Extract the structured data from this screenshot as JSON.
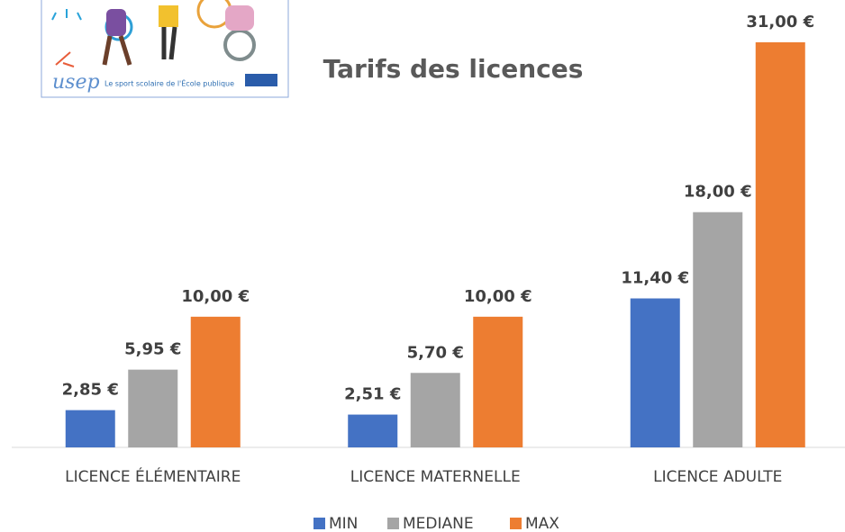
{
  "logo": {
    "brand": "usep",
    "tagline": "Le sport scolaire de l'École publique"
  },
  "chart_data": {
    "type": "bar",
    "title": "Tarifs des licences",
    "categories": [
      "LICENCE ÉLÉMENTAIRE",
      "LICENCE MATERNELLE",
      "LICENCE ADULTE"
    ],
    "series": [
      {
        "name": "MIN",
        "color": "#4472c4",
        "values": [
          2.85,
          2.51,
          11.4
        ],
        "value_labels": [
          "2,85 €",
          "2,51 €",
          "11,40 €"
        ]
      },
      {
        "name": "MEDIANE",
        "color": "#a5a5a5",
        "values": [
          5.95,
          5.7,
          18
        ],
        "value_labels": [
          "5,95 €",
          "5,70 €",
          "18,00 €"
        ]
      },
      {
        "name": "MAX",
        "color": "#ed7d31",
        "values": [
          10,
          10,
          31
        ],
        "value_labels": [
          "10,00 €",
          "10,00 €",
          "31,00 €"
        ]
      }
    ],
    "ylim": [
      0,
      31
    ],
    "legend": "bottom"
  }
}
